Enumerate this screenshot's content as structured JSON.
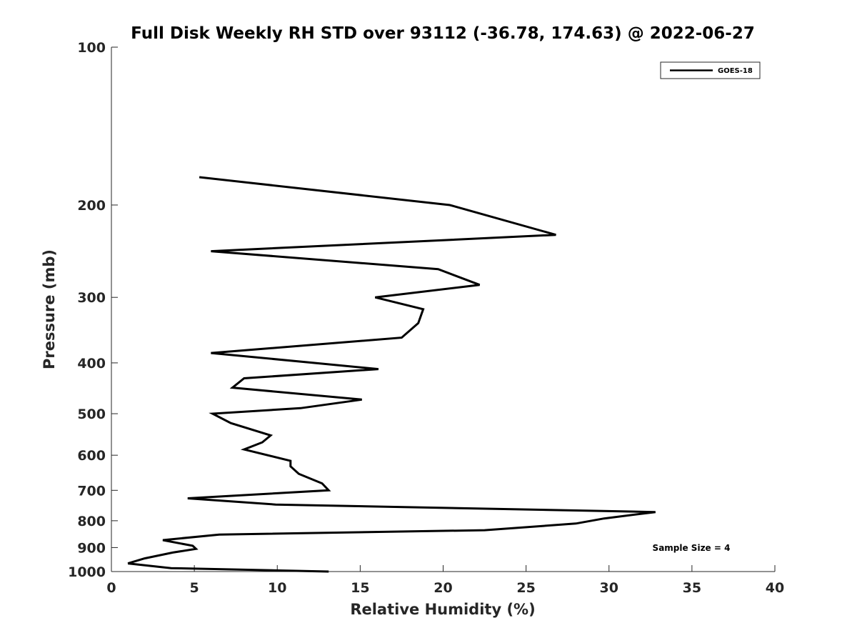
{
  "chart_data": {
    "type": "line",
    "title": "Full Disk Weekly RH STD over 93112 (-36.78, 174.63) @ 2022-06-27",
    "xlabel": "Relative Humidity (%)",
    "ylabel": "Pressure (mb)",
    "xlim": [
      0,
      40
    ],
    "ylim": [
      100,
      1000
    ],
    "y_scale": "log",
    "y_reversed": true,
    "x_ticks": [
      0,
      5,
      10,
      15,
      20,
      25,
      30,
      35,
      40
    ],
    "y_ticks": [
      100,
      200,
      300,
      400,
      500,
      600,
      700,
      800,
      900,
      1000
    ],
    "grid": false,
    "legend_position": "top-right",
    "annotation": "Sample Size = 4",
    "series": [
      {
        "name": "GOES-18",
        "color": "#000000",
        "x": [
          5.3,
          20.4,
          26.8,
          6.0,
          19.7,
          22.2,
          15.9,
          18.8,
          18.5,
          17.5,
          6.0,
          16.1,
          8.0,
          7.3,
          15.1,
          11.4,
          6.1,
          7.2,
          9.6,
          9.1,
          8.0,
          10.8,
          10.8,
          11.3,
          12.7,
          13.1,
          4.6,
          9.9,
          32.8,
          29.7,
          28.0,
          22.5,
          6.5,
          3.1,
          4.9,
          5.1,
          3.7,
          2.0,
          1.0,
          3.6,
          13.1
        ],
        "y": [
          177,
          200,
          228,
          245,
          265,
          284,
          300,
          316,
          336,
          358,
          383,
          411,
          428,
          446,
          470,
          488,
          500,
          521,
          550,
          567,
          585,
          615,
          630,
          651,
          679,
          700,
          725,
          745,
          770,
          792,
          810,
          834,
          850,
          871,
          893,
          905,
          920,
          944,
          965,
          985,
          1005
        ]
      }
    ]
  }
}
